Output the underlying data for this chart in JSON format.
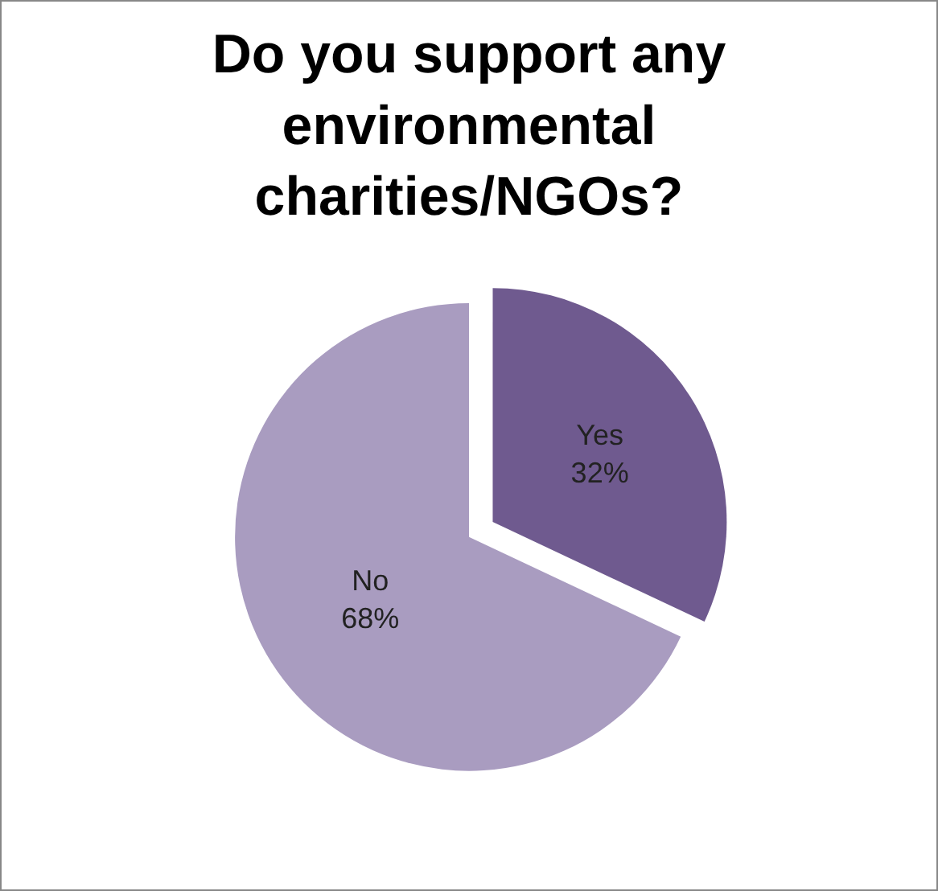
{
  "chart_data": {
    "type": "pie",
    "title": "Do you support any environmental charities/NGOs?",
    "categories": [
      "Yes",
      "No"
    ],
    "values": [
      32,
      68
    ],
    "value_labels": [
      "32%",
      "68%"
    ],
    "colors": [
      "#6f5a8f",
      "#a99cc0"
    ],
    "legend": false
  }
}
